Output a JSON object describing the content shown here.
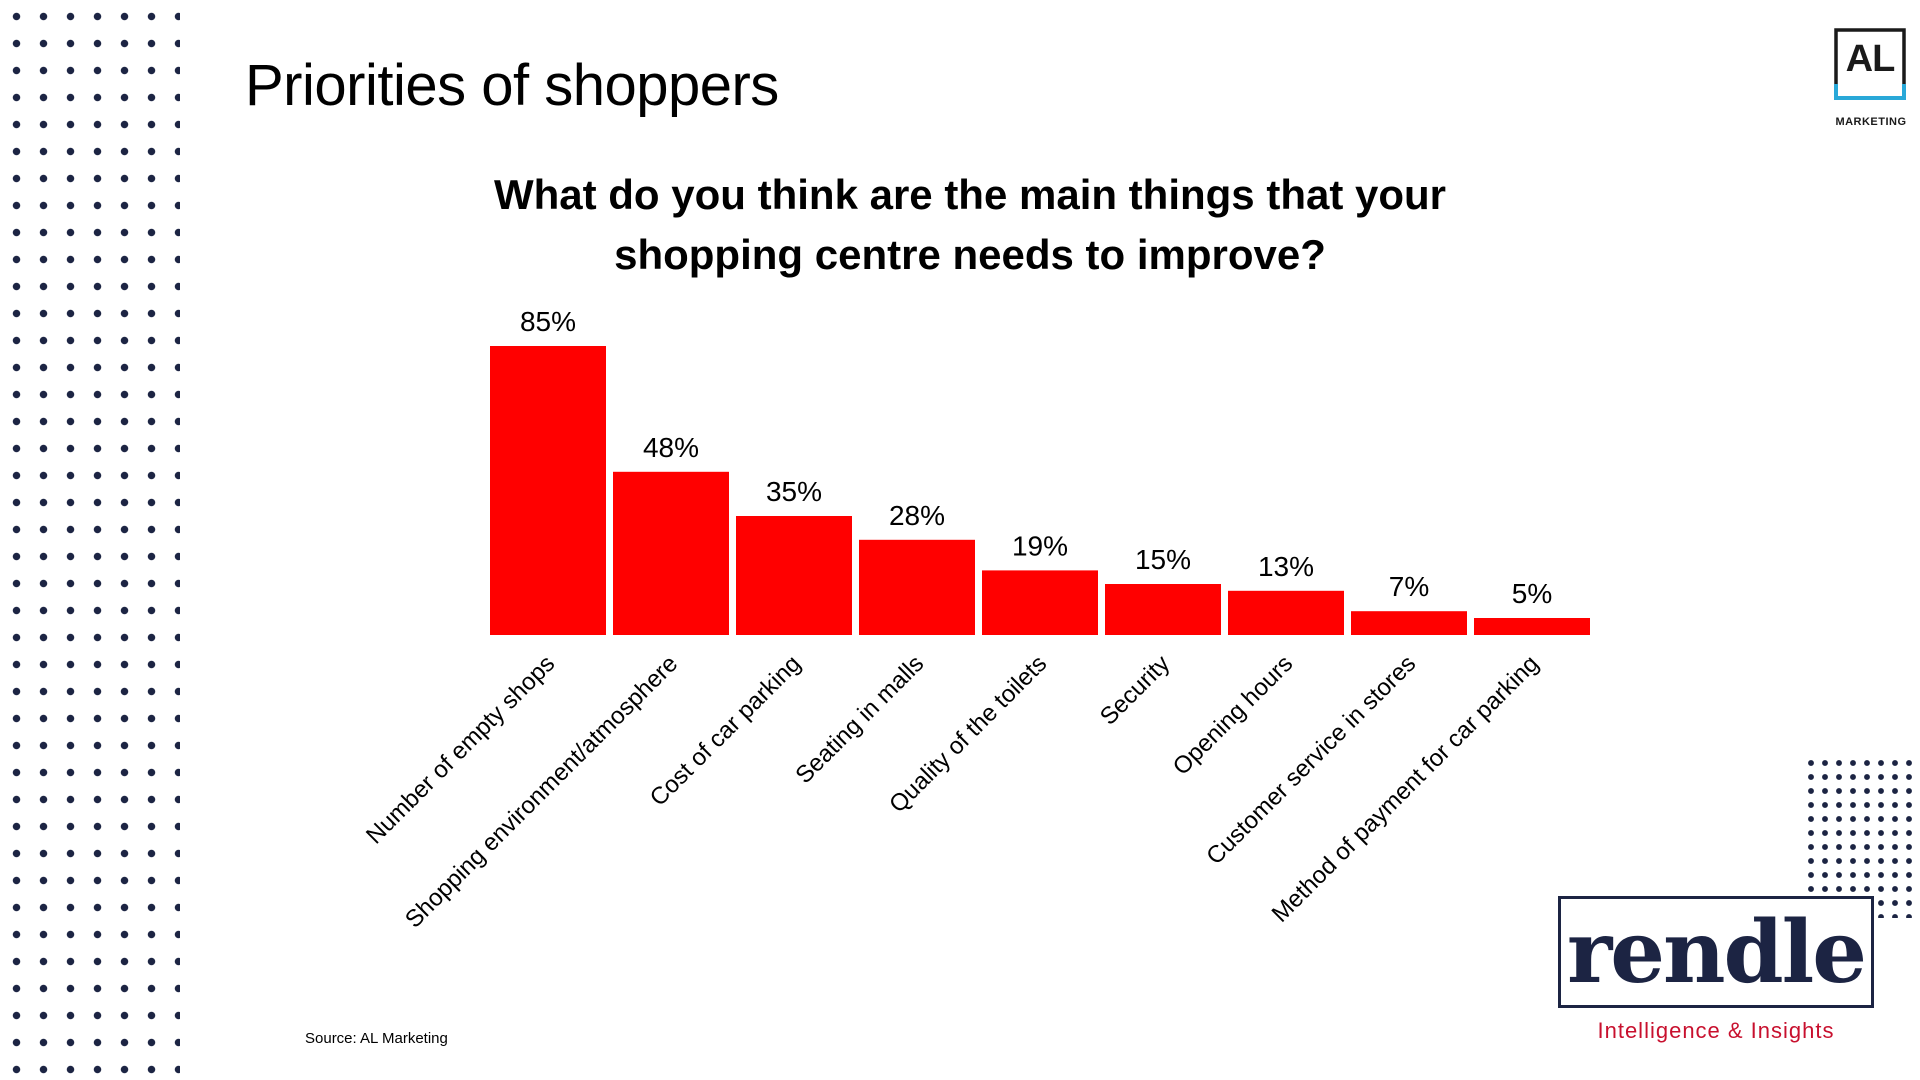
{
  "slide": {
    "title": "Priorities of shoppers",
    "source": "Source: AL Marketing"
  },
  "logos": {
    "al_mark": "AL",
    "al_subtitle": "MARKETING",
    "rendle_word": "rendle",
    "rendle_tagline": "Intelligence & Insights"
  },
  "colors": {
    "bar": "#ff0000",
    "navy": "#1c2443",
    "accent_red": "#c8102e",
    "al_accent": "#29a8d8"
  },
  "chart_data": {
    "type": "bar",
    "title": "What do you think are the main things that your shopping centre needs to improve?",
    "categories": [
      "Number of empty shops",
      "Shopping environment/atmosphere",
      "Cost of car parking",
      "Seating in malls",
      "Quality of the toilets",
      "Security",
      "Opening hours",
      "Customer service in stores",
      "Method of payment for car parking"
    ],
    "values": [
      85,
      48,
      35,
      28,
      19,
      15,
      13,
      7,
      5
    ],
    "value_labels": [
      "85%",
      "48%",
      "35%",
      "28%",
      "19%",
      "15%",
      "13%",
      "7%",
      "5%"
    ],
    "unit": "%",
    "ylim": [
      0,
      100
    ],
    "grid": false,
    "legend": "none"
  }
}
